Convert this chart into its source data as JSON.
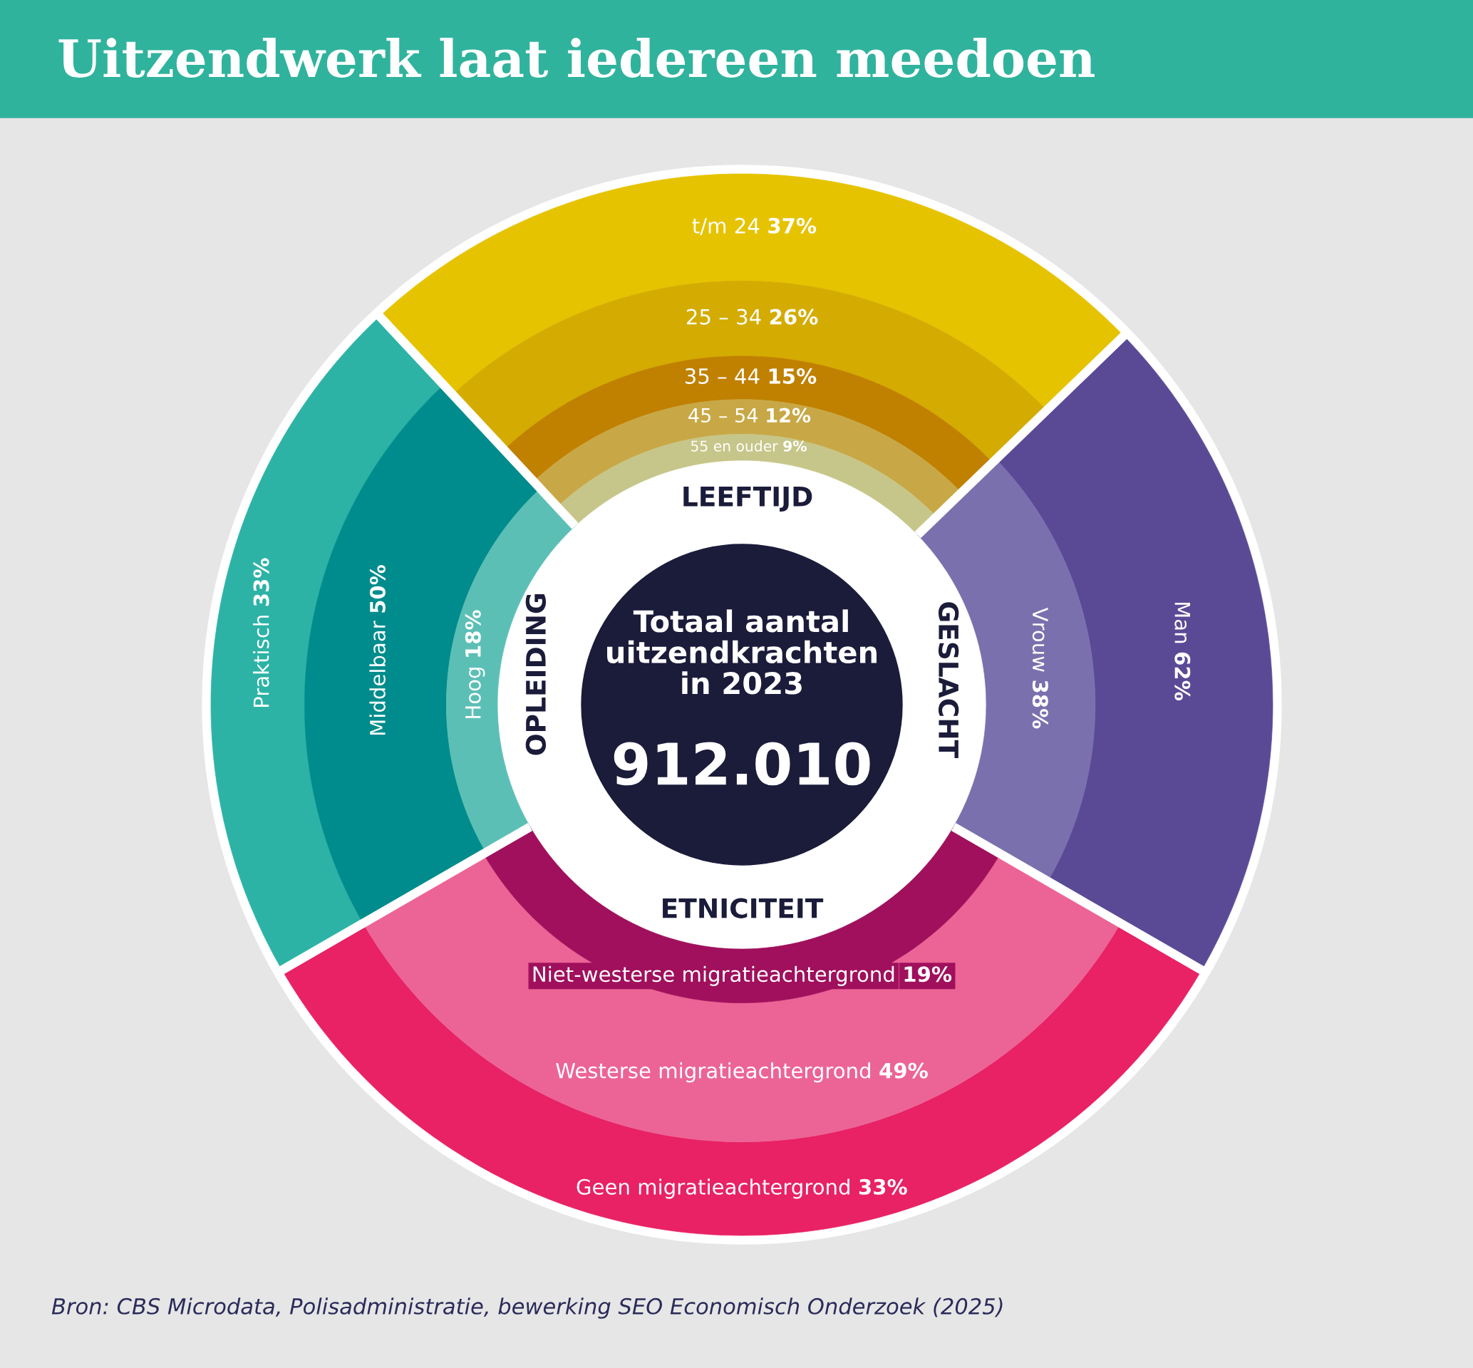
{
  "chart_data": [
    {
      "type": "other",
      "title": "Uitzendwerk laat iedereen meedoen",
      "annotations": [
        "Totaal aantal\nuitzendkrachten\nin 2023",
        "912.010",
        "Bron: CBS Microdata, Polisadministratie, bewerking SEO Economisch Onderzoek (2025)"
      ]
    },
    {
      "type": "other",
      "title": "LEEFTIJD",
      "categories": [
        "t/m 24",
        "25 – 34",
        "35 – 44",
        "45 – 54",
        "55 en ouder"
      ],
      "values": [
        37,
        26,
        15,
        12,
        9
      ],
      "value_labels": [
        "37%",
        "26%",
        "15%",
        "12%",
        "9%"
      ],
      "colors": [
        "#e6c300",
        "#d4ab00",
        "#c08000",
        "#c8a846",
        "#c7c68a"
      ]
    },
    {
      "type": "other",
      "title": "GESLACHT",
      "categories": [
        "Man",
        "Vrouw"
      ],
      "values": [
        62,
        38
      ],
      "value_labels": [
        "62%",
        "38%"
      ],
      "colors": [
        "#5a4a96",
        "#7b70ae"
      ]
    },
    {
      "type": "other",
      "title": "ETNICITEIT",
      "categories": [
        "Geen migratieachtergrond",
        "Westerse migratieachtergrond",
        "Niet-westerse migratieachtergrond"
      ],
      "values": [
        33,
        49,
        19
      ],
      "value_labels": [
        "33%",
        "49%",
        "19%"
      ],
      "colors": [
        "#e82264",
        "#ec6496",
        "#a0105c"
      ]
    },
    {
      "type": "other",
      "title": "OPLEIDING",
      "categories": [
        "Praktisch",
        "Middelbaar",
        "Hoog"
      ],
      "values": [
        33,
        50,
        18
      ],
      "value_labels": [
        "33%",
        "50%",
        "18%"
      ],
      "colors": [
        "#2db3a6",
        "#008c8c",
        "#5cbfb5"
      ]
    }
  ]
}
